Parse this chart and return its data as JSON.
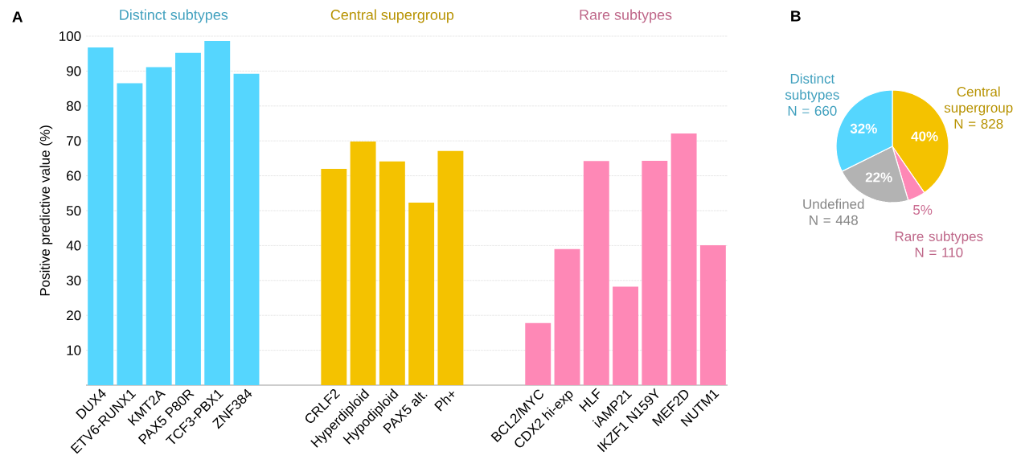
{
  "chart_data": [
    {
      "type": "bar",
      "title": "A",
      "ylabel": "Positive predictive value (%)",
      "categories": [
        "DUX4",
        "ETV6-RUNX1",
        "KMT2A",
        "PAX5 P80R",
        "TCF3-PBX1",
        "ZNF384",
        null,
        null,
        "CRLF2",
        "Hyperdiploid",
        "Hypodiploid",
        "PAX5 alt.",
        "Ph+",
        null,
        null,
        "BCL2/MYC",
        "CDX2 hi-exp",
        "HLF",
        "iAMP21",
        "IKZF1 N159Y",
        "MEF2D",
        "NUTM1"
      ],
      "values": [
        96.8,
        86.5,
        91.1,
        95.2,
        98.6,
        89.2,
        null,
        null,
        62.0,
        69.8,
        64.1,
        52.3,
        67.1,
        null,
        null,
        17.8,
        39.0,
        64.2,
        28.2,
        64.3,
        72.1,
        40.1
      ],
      "colors": [
        "#55d6fe",
        "#55d6fe",
        "#55d6fe",
        "#55d6fe",
        "#55d6fe",
        "#55d6fe",
        null,
        null,
        "#f4c200",
        "#f4c200",
        "#f4c200",
        "#f4c200",
        "#f4c200",
        null,
        null,
        "#fe88b6",
        "#fe88b6",
        "#fe88b6",
        "#fe88b6",
        "#fe88b6",
        "#fe88b6",
        "#fe88b6"
      ],
      "annotations": [
        "Distinct subtypes",
        "Central supergroup",
        "Rare subtypes"
      ],
      "ylim": [
        0,
        100
      ],
      "yticks": [
        10,
        20,
        30,
        40,
        50,
        60,
        70,
        80,
        90,
        100
      ],
      "grid": "y"
    },
    {
      "type": "pie",
      "title": "B",
      "categories": [
        "Central supergroup N = 828",
        "Rare subtypes N = 110",
        "Undefined N = 448",
        "Distinct subtypes N = 660"
      ],
      "values": [
        40,
        5,
        22,
        32
      ],
      "colors": [
        "#f4c200",
        "#fe88b6",
        "#b3b3b3",
        "#55d6fe"
      ],
      "value_labels": [
        "40%",
        "5%",
        "22%",
        "32%"
      ]
    }
  ]
}
